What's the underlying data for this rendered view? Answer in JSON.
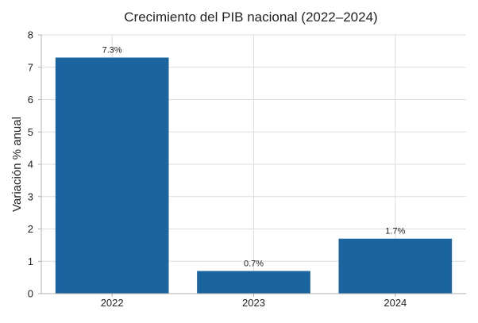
{
  "chart_data": {
    "type": "bar",
    "title": "Crecimiento del PIB nacional (2022–2024)",
    "xlabel": "",
    "ylabel": "Variación % anual",
    "categories": [
      "2022",
      "2023",
      "2024"
    ],
    "values": [
      7.3,
      0.7,
      1.7
    ],
    "data_labels": [
      "7.3%",
      "0.7%",
      "1.7%"
    ],
    "ylim": [
      0,
      8
    ],
    "yticks": [
      0,
      1,
      2,
      3,
      4,
      5,
      6,
      7,
      8
    ],
    "grid": true,
    "legend": "none",
    "bar_color": "#1a64a0"
  }
}
